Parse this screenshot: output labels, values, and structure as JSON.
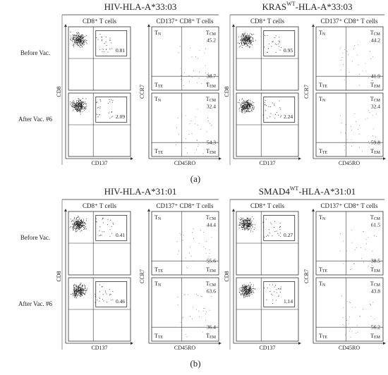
{
  "row_labels": [
    "Before Vac.",
    "After Vac. #6"
  ],
  "column_headers": [
    "CD8⁺ T cells",
    "CD137⁺ CD8⁺ T cells"
  ],
  "axis_labels": {
    "cd8": "CD8",
    "cd137": "CD137",
    "ccr7": "CCR7",
    "cd45ro": "CD45RO"
  },
  "quadrants": [
    [
      "T",
      "N"
    ],
    [
      "T",
      "CM"
    ],
    [
      "T",
      "TE"
    ],
    [
      "T",
      "EM"
    ]
  ],
  "panels": [
    {
      "label": "(a)",
      "groups": [
        {
          "title": [
            "HIV-HLA-A*33:03"
          ],
          "rows": [
            {
              "gate": 0.81,
              "tcm": 45.2,
              "tem": 38.7
            },
            {
              "gate": 2.09,
              "tcm": 32.4,
              "tem": 54.3
            }
          ]
        },
        {
          "title": [
            "KRAS",
            "WT",
            "-HLA-A*33:03"
          ],
          "rows": [
            {
              "gate": 0.95,
              "tcm": 44.2,
              "tem": 41.9
            },
            {
              "gate": 2.24,
              "tcm": 32.4,
              "tem": 59.8
            }
          ]
        }
      ]
    },
    {
      "label": "(b)",
      "groups": [
        {
          "title": [
            "HIV-HLA-A*31:01"
          ],
          "rows": [
            {
              "gate": 0.41,
              "tcm": 44.4,
              "tem": 55.6
            },
            {
              "gate": 0.46,
              "tcm": 63.6,
              "tem": 36.4
            }
          ]
        },
        {
          "title": [
            "SMAD4",
            "WT",
            "-HLA-A*31:01"
          ],
          "rows": [
            {
              "gate": 0.27,
              "tcm": 61.5,
              "tem": 38.5
            },
            {
              "gate": 1.14,
              "tcm": 43.8,
              "tem": 56.2
            }
          ]
        }
      ]
    }
  ]
}
